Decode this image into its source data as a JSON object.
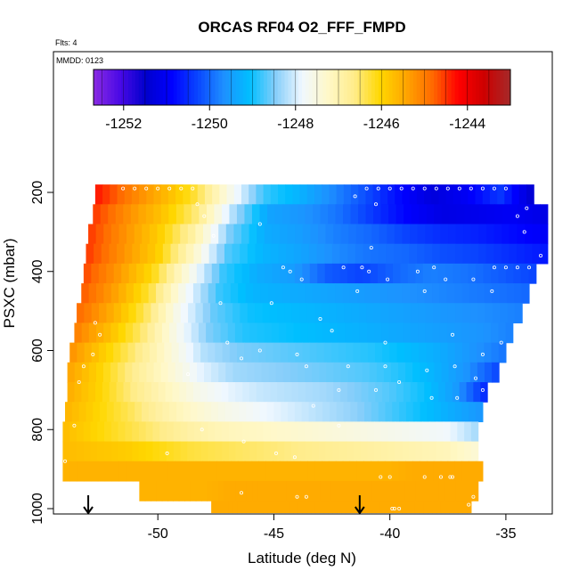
{
  "chart_data": {
    "type": "heatmap",
    "title": "ORCAS RF04 O2_FFF_FMPD",
    "note_flights": "Flts: 4",
    "note_mmdd": "MMDD: 0123",
    "xlabel": "Latitude (deg N)",
    "ylabel": "PSXC (mbar)",
    "xlim": [
      -54.5,
      -33.0
    ],
    "ylim": [
      1010,
      100
    ],
    "x_ticks": [
      -50,
      -45,
      -40,
      -35
    ],
    "x_tick_labels": [
      "-50",
      "-45",
      "-40",
      "-35"
    ],
    "y_ticks": [
      200,
      400,
      600,
      800,
      1000
    ],
    "y_tick_labels": [
      "200",
      "400",
      "600",
      "800",
      "1000"
    ],
    "colorbar": {
      "range": [
        -1252.7,
        -1243.0
      ],
      "ticks": [
        -1252,
        -1250,
        -1248,
        -1246,
        -1244
      ],
      "tick_labels": [
        "-1252",
        "-1250",
        "-1248",
        "-1246",
        "-1244"
      ],
      "colors": [
        "#8a2be2",
        "#4b0ae6",
        "#0000cd",
        "#0000ff",
        "#0a46ff",
        "#1e90ff",
        "#00bfff",
        "#87cefa",
        "#f0f8ff",
        "#fff8c8",
        "#ffec8b",
        "#ffd700",
        "#ffa500",
        "#ff6a00",
        "#ff0000",
        "#cd0000",
        "#a52a2a"
      ]
    },
    "layers": [
      {
        "p_top": 180,
        "p_bot": 230,
        "lat_min": -52.7,
        "lat_max": -33.8,
        "values": [
          -1244.3,
          -1245.0,
          -1245.6,
          -1246.3,
          -1247.6,
          -1248.8,
          -1249.2,
          -1249.7,
          -1250.2,
          -1250.8,
          -1251.3,
          -1251.0,
          -1250.4,
          -1251.5
        ]
      },
      {
        "p_top": 230,
        "p_bot": 280,
        "lat_min": -52.8,
        "lat_max": -33.2,
        "values": [
          -1244.5,
          -1245.2,
          -1245.8,
          -1246.6,
          -1248.2,
          -1249.4,
          -1249.6,
          -1249.9,
          -1250.4,
          -1250.9,
          -1251.2,
          -1251.1,
          -1251.0,
          -1251.2
        ]
      },
      {
        "p_top": 280,
        "p_bot": 330,
        "lat_min": -53.0,
        "lat_max": -33.2,
        "values": [
          -1244.5,
          -1245.2,
          -1245.9,
          -1246.9,
          -1248.5,
          -1249.3,
          -1249.5,
          -1249.8,
          -1250.0,
          -1250.3,
          -1250.5,
          -1250.6,
          -1250.8,
          -1251.0
        ]
      },
      {
        "p_top": 330,
        "p_bot": 380,
        "lat_min": -53.1,
        "lat_max": -33.2,
        "values": [
          -1244.5,
          -1245.2,
          -1245.9,
          -1247.2,
          -1248.7,
          -1249.2,
          -1249.4,
          -1249.7,
          -1249.9,
          -1250.0,
          -1250.2,
          -1250.3,
          -1250.5,
          -1250.7
        ]
      },
      {
        "p_top": 380,
        "p_bot": 430,
        "lat_min": -53.2,
        "lat_max": -33.7,
        "values": [
          -1244.6,
          -1245.3,
          -1246.1,
          -1247.5,
          -1248.8,
          -1249.3,
          -1249.5,
          -1250.1,
          -1250.3,
          -1250.0,
          -1249.8,
          -1249.9,
          -1250.1,
          -1250.3
        ]
      },
      {
        "p_top": 430,
        "p_bot": 480,
        "lat_min": -53.3,
        "lat_max": -34.0,
        "values": [
          -1244.7,
          -1245.4,
          -1246.3,
          -1247.7,
          -1248.8,
          -1249.2,
          -1249.3,
          -1249.4,
          -1249.5,
          -1249.6,
          -1249.7,
          -1249.8,
          -1249.9,
          -1250.0
        ]
      },
      {
        "p_top": 480,
        "p_bot": 530,
        "lat_min": -53.5,
        "lat_max": -34.3,
        "values": [
          -1244.8,
          -1245.5,
          -1246.4,
          -1247.7,
          -1248.6,
          -1249.0,
          -1249.1,
          -1249.2,
          -1249.3,
          -1249.4,
          -1249.5,
          -1249.6,
          -1249.7,
          -1249.8
        ]
      },
      {
        "p_top": 530,
        "p_bot": 580,
        "lat_min": -53.6,
        "lat_max": -34.7,
        "values": [
          -1245.0,
          -1245.7,
          -1246.5,
          -1247.6,
          -1248.5,
          -1248.9,
          -1249.0,
          -1249.1,
          -1249.2,
          -1249.3,
          -1249.4,
          -1249.5,
          -1249.6,
          -1249.8
        ]
      },
      {
        "p_top": 580,
        "p_bot": 630,
        "lat_min": -53.8,
        "lat_max": -35.0,
        "values": [
          -1245.2,
          -1245.9,
          -1246.6,
          -1247.4,
          -1248.2,
          -1248.5,
          -1248.6,
          -1248.7,
          -1248.8,
          -1248.9,
          -1249.1,
          -1249.3,
          -1249.6,
          -1249.9
        ]
      },
      {
        "p_top": 630,
        "p_bot": 680,
        "lat_min": -53.9,
        "lat_max": -35.3,
        "values": [
          -1245.4,
          -1246.0,
          -1246.7,
          -1247.3,
          -1247.9,
          -1248.3,
          -1248.4,
          -1248.5,
          -1248.6,
          -1248.7,
          -1248.9,
          -1249.2,
          -1249.6,
          -1250.3
        ]
      },
      {
        "p_top": 680,
        "p_bot": 730,
        "lat_min": -53.9,
        "lat_max": -35.8,
        "values": [
          -1245.5,
          -1246.0,
          -1246.6,
          -1247.1,
          -1247.6,
          -1247.9,
          -1248.1,
          -1248.2,
          -1248.3,
          -1248.5,
          -1248.7,
          -1249.0,
          -1249.5,
          -1250.6
        ]
      },
      {
        "p_top": 730,
        "p_bot": 780,
        "lat_min": -54.0,
        "lat_max": -36.0,
        "values": [
          -1245.6,
          -1246.0,
          -1246.4,
          -1246.9,
          -1247.3,
          -1247.6,
          -1247.8,
          -1248.0,
          -1248.2,
          -1248.4,
          -1248.7,
          -1249.0,
          -1249.3,
          -1249.6
        ]
      },
      {
        "p_top": 780,
        "p_bot": 830,
        "lat_min": -54.1,
        "lat_max": -36.2,
        "values": [
          -1245.7,
          -1246.0,
          -1246.3,
          -1246.6,
          -1246.9,
          -1247.1,
          -1247.2,
          -1247.3,
          -1247.4,
          -1247.5,
          -1247.6,
          -1247.7,
          -1247.8,
          -1248.3
        ]
      },
      {
        "p_top": 830,
        "p_bot": 880,
        "lat_min": -54.1,
        "lat_max": -36.2,
        "values": [
          -1245.7,
          -1245.8,
          -1245.9,
          -1246.1,
          -1246.3,
          -1246.4,
          -1246.5,
          -1246.6,
          -1246.7,
          -1246.8,
          -1246.9,
          -1247.0,
          -1247.1,
          -1247.4
        ]
      },
      {
        "p_top": 880,
        "p_bot": 930,
        "lat_min": -54.1,
        "lat_max": -36.0,
        "values": [
          -1245.6,
          -1245.6,
          -1245.6,
          -1245.6,
          -1245.6,
          -1245.6,
          -1245.6,
          -1245.6,
          -1245.6,
          -1245.6,
          -1245.6,
          -1245.5,
          -1245.5,
          -1245.5
        ]
      },
      {
        "p_top": 930,
        "p_bot": 980,
        "lat_min": -50.8,
        "lat_max": -36.2,
        "values": [
          -1245.6,
          -1245.6,
          -1245.6,
          -1245.5,
          -1245.5,
          -1245.5,
          -1245.5,
          -1245.5,
          -1245.5,
          -1245.5,
          -1245.5,
          -1245.5
        ]
      },
      {
        "p_top": 980,
        "p_bot": 1010,
        "lat_min": -47.7,
        "lat_max": -36.5,
        "values": [
          -1245.5,
          -1245.5,
          -1245.5,
          -1245.5,
          -1245.5,
          -1245.5,
          -1245.5,
          -1245.5,
          -1245.5,
          -1245.5
        ]
      }
    ],
    "flight_markers_lat": [
      -53.0,
      -41.3
    ],
    "points": [
      [
        -51.5,
        190
      ],
      [
        -51.0,
        190
      ],
      [
        -50.5,
        190
      ],
      [
        -50.0,
        190
      ],
      [
        -49.5,
        190
      ],
      [
        -49.0,
        190
      ],
      [
        -48.5,
        190
      ],
      [
        -41.0,
        190
      ],
      [
        -40.5,
        190
      ],
      [
        -40.0,
        190
      ],
      [
        -39.5,
        190
      ],
      [
        -39.0,
        190
      ],
      [
        -38.5,
        190
      ],
      [
        -38.0,
        190
      ],
      [
        -37.5,
        190
      ],
      [
        -37.0,
        190
      ],
      [
        -36.5,
        190
      ],
      [
        -36.0,
        190
      ],
      [
        -35.5,
        190
      ],
      [
        -35.0,
        190
      ],
      [
        -48.3,
        230
      ],
      [
        -41.5,
        210
      ],
      [
        -40.6,
        230
      ],
      [
        -34.5,
        260
      ],
      [
        -34.1,
        240
      ],
      [
        -48.0,
        260
      ],
      [
        -47.6,
        310
      ],
      [
        -45.6,
        280
      ],
      [
        -40.8,
        340
      ],
      [
        -34.2,
        300
      ],
      [
        -33.5,
        360
      ],
      [
        -35.5,
        390
      ],
      [
        -35.0,
        390
      ],
      [
        -34.5,
        390
      ],
      [
        -34.0,
        390
      ],
      [
        -44.6,
        390
      ],
      [
        -44.3,
        400
      ],
      [
        -45.1,
        480
      ],
      [
        -43.8,
        420
      ],
      [
        -40.1,
        420
      ],
      [
        -38.8,
        400
      ],
      [
        -38.1,
        390
      ],
      [
        -37.6,
        420
      ],
      [
        -42.0,
        390
      ],
      [
        -41.2,
        390
      ],
      [
        -40.9,
        400
      ],
      [
        -41.4,
        450
      ],
      [
        -38.5,
        450
      ],
      [
        -36.4,
        420
      ],
      [
        -35.6,
        450
      ],
      [
        -47.3,
        480
      ],
      [
        -43.0,
        520
      ],
      [
        -42.5,
        550
      ],
      [
        -40.2,
        580
      ],
      [
        -37.3,
        560
      ],
      [
        -35.2,
        580
      ],
      [
        -36.0,
        610
      ],
      [
        -52.7,
        530
      ],
      [
        -52.5,
        560
      ],
      [
        -52.8,
        610
      ],
      [
        -53.2,
        640
      ],
      [
        -53.4,
        680
      ],
      [
        -47.0,
        580
      ],
      [
        -45.6,
        600
      ],
      [
        -44.0,
        610
      ],
      [
        -41.8,
        640
      ],
      [
        -40.2,
        640
      ],
      [
        -38.4,
        650
      ],
      [
        -37.2,
        640
      ],
      [
        -36.3,
        670
      ],
      [
        -36.0,
        700
      ],
      [
        -37.1,
        720
      ],
      [
        -39.6,
        680
      ],
      [
        -48.7,
        660
      ],
      [
        -46.4,
        620
      ],
      [
        -43.6,
        640
      ],
      [
        -42.2,
        700
      ],
      [
        -40.6,
        700
      ],
      [
        -38.2,
        720
      ],
      [
        -53.6,
        790
      ],
      [
        -46.3,
        830
      ],
      [
        -44.9,
        860
      ],
      [
        -44.1,
        870
      ],
      [
        -48.1,
        800
      ],
      [
        -43.3,
        740
      ],
      [
        -42.2,
        790
      ],
      [
        -54.0,
        880
      ],
      [
        -49.6,
        860
      ],
      [
        -46.4,
        960
      ],
      [
        -44.0,
        970
      ],
      [
        -43.6,
        970
      ],
      [
        -40.4,
        920
      ],
      [
        -40.0,
        920
      ],
      [
        -39.9,
        1000
      ],
      [
        -39.8,
        1000
      ],
      [
        -39.6,
        1000
      ],
      [
        -38.5,
        920
      ],
      [
        -37.8,
        920
      ],
      [
        -37.3,
        920
      ],
      [
        -36.4,
        970
      ],
      [
        -36.6,
        990
      ],
      [
        -37.4,
        920
      ]
    ]
  }
}
